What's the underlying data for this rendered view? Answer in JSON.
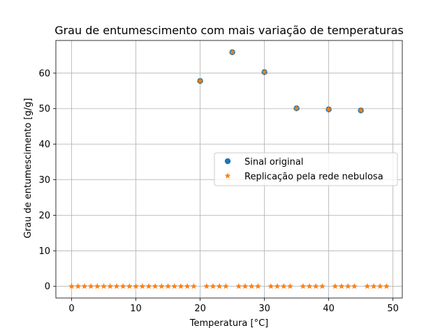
{
  "chart_data": {
    "type": "scatter",
    "title": "Grau de entumescimento com mais variação de temperaturas",
    "xlabel": "Temperatura [°C]",
    "ylabel": "Grau de entumescimento [g/g]",
    "xlim": [
      -2.45,
      51.45
    ],
    "ylim": [
      -3.3,
      69.2
    ],
    "xticks": [
      0,
      10,
      20,
      30,
      40,
      50
    ],
    "yticks": [
      0,
      10,
      20,
      30,
      40,
      50,
      60
    ],
    "grid": true,
    "legend_position": "center-right",
    "series": [
      {
        "name": "Sinal original",
        "marker": "circle",
        "color": "#1f77b4",
        "x": [
          20,
          25,
          30,
          35,
          40,
          45
        ],
        "y": [
          57.8,
          65.9,
          60.3,
          50.1,
          49.8,
          49.5
        ]
      },
      {
        "name": "Replicação pela rede nebulosa",
        "marker": "star",
        "color": "#ff7f0e",
        "x": [
          0,
          1,
          2,
          3,
          4,
          5,
          6,
          7,
          8,
          9,
          10,
          11,
          12,
          13,
          14,
          15,
          16,
          17,
          18,
          19,
          20,
          21,
          22,
          23,
          24,
          25,
          26,
          27,
          28,
          29,
          30,
          31,
          32,
          33,
          34,
          35,
          36,
          37,
          38,
          39,
          40,
          41,
          42,
          43,
          44,
          45,
          46,
          47,
          48,
          49
        ],
        "y": [
          0,
          0,
          0,
          0,
          0,
          0,
          0,
          0,
          0,
          0,
          0,
          0,
          0,
          0,
          0,
          0,
          0,
          0,
          0,
          0,
          57.8,
          0,
          0,
          0,
          0,
          65.9,
          0,
          0,
          0,
          0,
          60.3,
          0,
          0,
          0,
          0,
          50.1,
          0,
          0,
          0,
          0,
          49.8,
          0,
          0,
          0,
          0,
          49.5,
          0,
          0,
          0,
          0
        ]
      }
    ]
  }
}
